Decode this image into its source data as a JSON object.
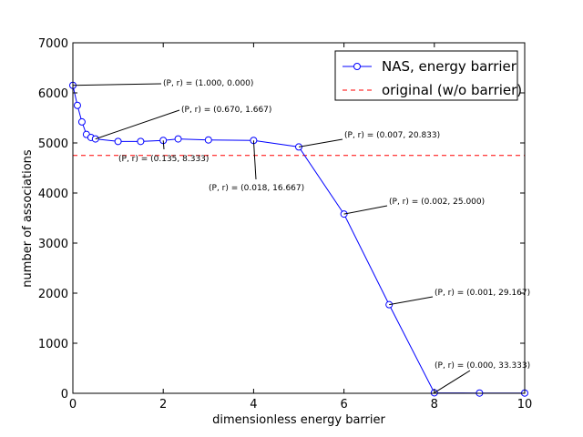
{
  "chart_data": {
    "type": "line",
    "xlabel": "dimensionless energy barrier",
    "ylabel": "number of associations",
    "xlim": [
      0,
      10
    ],
    "ylim": [
      0,
      7000
    ],
    "x_ticks": [
      "0",
      "2",
      "4",
      "6",
      "8",
      "10"
    ],
    "y_ticks": [
      "0",
      "1000",
      "2000",
      "3000",
      "4000",
      "5000",
      "6000",
      "7000"
    ],
    "grid": false,
    "legend_position": "top-right",
    "series": [
      {
        "name": "NAS, energy barrier",
        "color": "#0000ff",
        "marker": "circle-open",
        "x": [
          0,
          0.1,
          0.2,
          0.3,
          0.4,
          0.5,
          1,
          1.5,
          2,
          2.33,
          3,
          4,
          5,
          6,
          7,
          8,
          9,
          10
        ],
        "y": [
          6150,
          5750,
          5420,
          5170,
          5110,
          5080,
          5030,
          5030,
          5050,
          5080,
          5060,
          5050,
          4920,
          3580,
          1770,
          10,
          5,
          5
        ]
      },
      {
        "name": "original (w/o barrier)",
        "color": "#ff0000",
        "style": "dashed",
        "x": [
          0,
          10
        ],
        "y": [
          4750,
          4750
        ]
      }
    ],
    "annotations": [
      {
        "text": "(P, r) = (1.000, 0.000)"
      },
      {
        "text": "(P, r) = (0.670, 1.667)"
      },
      {
        "text": "(P, r) = (0.135, 8.333)"
      },
      {
        "text": "(P, r) = (0.018, 16.667)"
      },
      {
        "text": "(P, r) = (0.007, 20.833)"
      },
      {
        "text": "(P, r) = (0.002, 25.000)"
      },
      {
        "text": "(P, r) = (0.001, 29.167)"
      },
      {
        "text": "(P, r) = (0.000, 33.333)"
      }
    ]
  }
}
